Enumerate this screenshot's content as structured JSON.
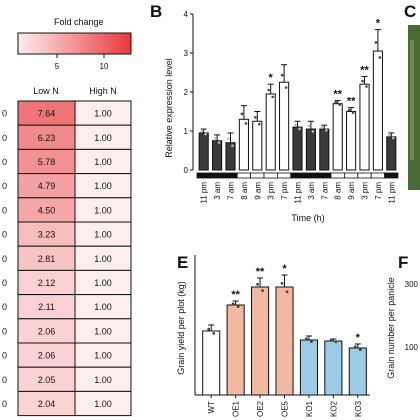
{
  "panels": {
    "B": "B",
    "C": "C",
    "E": "E",
    "F": "F"
  },
  "heatmap": {
    "legend_title": "Fold change",
    "legend_ticks": [
      "5",
      "10"
    ],
    "columns": [
      "Low N",
      "High N"
    ],
    "row_prefix": "0"
  },
  "colors": {
    "dark_bar": "#3b3b3b",
    "open_bar": "#ffffff",
    "wt_bar": "#ffffff",
    "oe_bar": "#f2b8a2",
    "ko_bar": "#9ccbe6",
    "heat_low": "#fdeeee",
    "heat_high": "#e8393d",
    "photo": "#4a6a33"
  },
  "chart_data": [
    {
      "type": "heatmap",
      "title": "Fold change",
      "columns": [
        "Low N",
        "High N"
      ],
      "low_n": [
        7.64,
        6.23,
        5.78,
        4.79,
        4.5,
        3.23,
        2.81,
        2.12,
        2.11,
        2.06,
        2.06,
        2.05,
        2.04
      ],
      "high_n": [
        1.0,
        1.0,
        1.0,
        1.0,
        1.0,
        1.0,
        1.0,
        1.0,
        1.0,
        1.0,
        1.0,
        1.0,
        1.0
      ],
      "labels_low": [
        "7.64",
        "6.23",
        "5.78",
        "4.79",
        "4.50",
        "3.23",
        "2.81",
        "2.12",
        "2.11",
        "2.06",
        "2.06",
        "2.05",
        "2.04"
      ],
      "labels_high": [
        "1.00",
        "1.00",
        "1.00",
        "1.00",
        "1.00",
        "1.00",
        "1.00",
        "1.00",
        "1.00",
        "1.00",
        "1.00",
        "1.00",
        "1.00"
      ],
      "scale_range": [
        1,
        12
      ]
    },
    {
      "type": "bar",
      "ylabel": "Relative expression level",
      "xlabel": "Time (h)",
      "ylim": [
        0,
        4
      ],
      "yticks": [
        "0",
        "1",
        "2",
        "3",
        "4"
      ],
      "categories": [
        "11 pm",
        "3 am",
        "7 am",
        "8 am",
        "9 am",
        "3 pm",
        "7 pm",
        "11 pm",
        "3 am",
        "7 am",
        "8 am",
        "9 am",
        "3 pm",
        "7 pm",
        "11 pm"
      ],
      "values": [
        0.95,
        0.75,
        0.7,
        1.3,
        1.25,
        1.95,
        2.25,
        1.1,
        1.05,
        1.05,
        1.7,
        1.5,
        2.2,
        3.05,
        0.85
      ],
      "errors": [
        0.1,
        0.15,
        0.25,
        0.35,
        0.25,
        0.25,
        0.45,
        0.15,
        0.2,
        0.1,
        0.08,
        0.1,
        0.2,
        0.55,
        0.1
      ],
      "fill": [
        "dark",
        "dark",
        "dark",
        "open",
        "open",
        "open",
        "open",
        "dark",
        "dark",
        "dark",
        "open",
        "open",
        "open",
        "open",
        "dark"
      ],
      "annotations": [
        "",
        "",
        "",
        "",
        "",
        "*",
        "",
        "",
        "",
        "",
        "**",
        "**",
        "**",
        "*",
        ""
      ]
    },
    {
      "type": "bar",
      "ylabel": "Grain yield per plot (kg)",
      "ylim": [
        0,
        1.4
      ],
      "categories": [
        "WT",
        "OE1",
        "OE2",
        "OE5",
        "KO1",
        "KO2",
        "KO3"
      ],
      "values": [
        0.64,
        0.9,
        1.08,
        1.08,
        0.55,
        0.54,
        0.47
      ],
      "errors": [
        0.06,
        0.04,
        0.09,
        0.12,
        0.04,
        0.02,
        0.04
      ],
      "groups": [
        "wt",
        "oe",
        "oe",
        "oe",
        "ko",
        "ko",
        "ko"
      ],
      "annotations": [
        "",
        "**",
        "**",
        "*",
        "",
        "",
        "*"
      ]
    },
    {
      "type": "bar",
      "ylabel": "Grain number per panicle",
      "yticks": [
        "300",
        "100"
      ]
    }
  ]
}
